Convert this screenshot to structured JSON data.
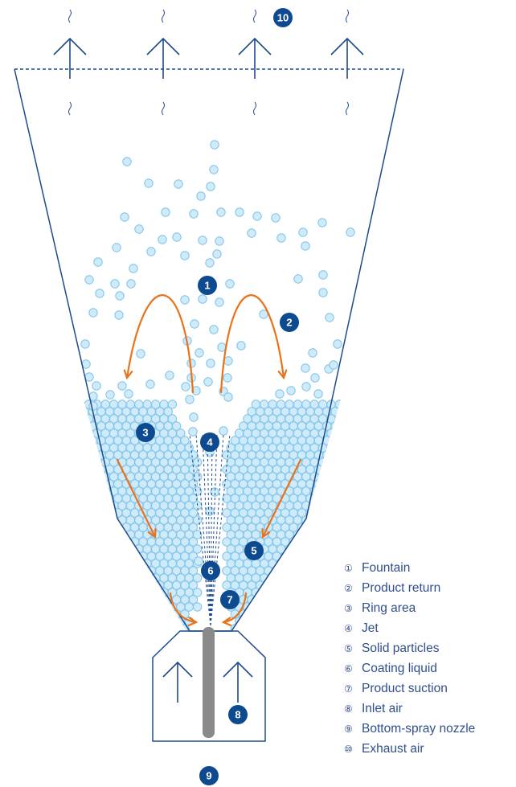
{
  "colors": {
    "outline": "#1c4b8c",
    "badge": "#0d4a8f",
    "particle_fill": "#cfeaf8",
    "particle_stroke": "#7cc3ea",
    "flow_arrow": "#e8731b",
    "nozzle": "#8a8a8a",
    "legend_text": "#2f4f8c"
  },
  "badges": [
    {
      "id": 1,
      "label": "1"
    },
    {
      "id": 2,
      "label": "2"
    },
    {
      "id": 3,
      "label": "3"
    },
    {
      "id": 4,
      "label": "4"
    },
    {
      "id": 5,
      "label": "5"
    },
    {
      "id": 6,
      "label": "6"
    },
    {
      "id": 7,
      "label": "7"
    },
    {
      "id": 8,
      "label": "8"
    },
    {
      "id": 9,
      "label": "9"
    },
    {
      "id": 10,
      "label": "10"
    }
  ],
  "legend": [
    {
      "num": "①",
      "label": "Fountain"
    },
    {
      "num": "②",
      "label": "Product return"
    },
    {
      "num": "③",
      "label": "Ring area"
    },
    {
      "num": "④",
      "label": "Jet"
    },
    {
      "num": "⑤",
      "label": "Solid particles"
    },
    {
      "num": "⑥",
      "label": "Coating liquid"
    },
    {
      "num": "⑦",
      "label": "Product suction"
    },
    {
      "num": "⑧",
      "label": "Inlet air"
    },
    {
      "num": "⑨",
      "label": "Bottom-spray nozzle"
    },
    {
      "num": "⑩",
      "label": "Exhaust air"
    }
  ]
}
